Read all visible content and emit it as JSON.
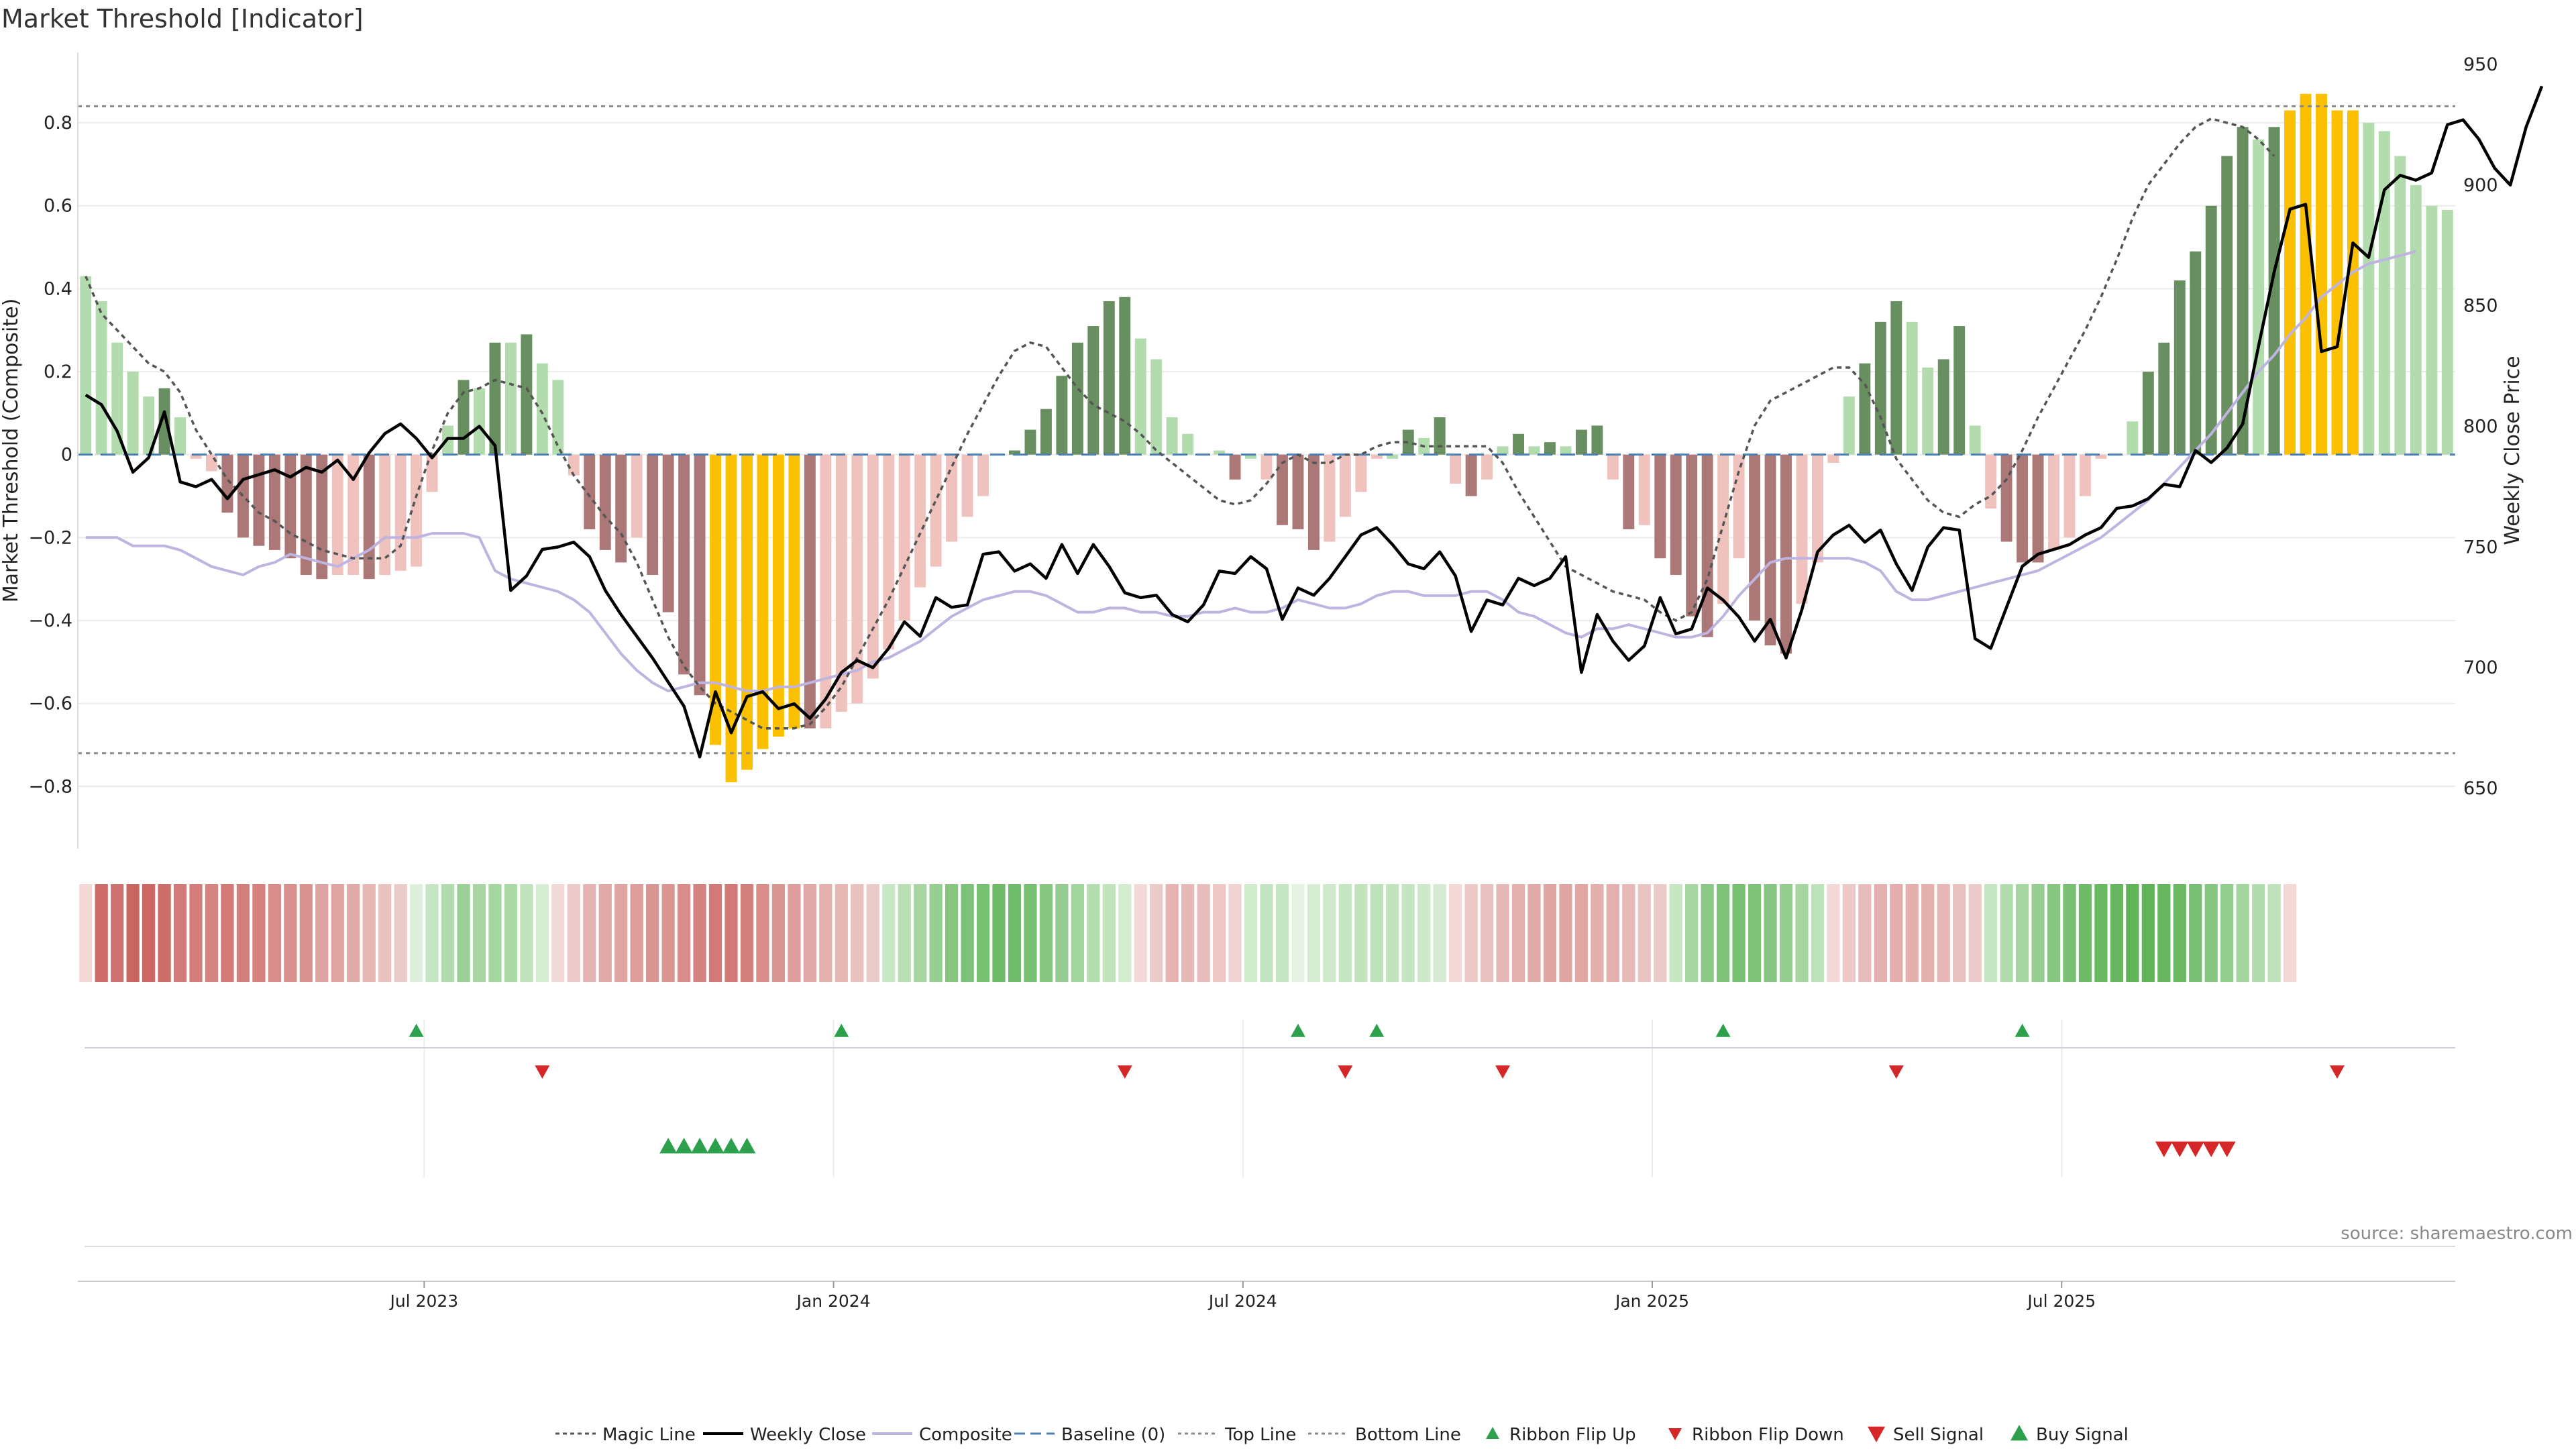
{
  "chart_data": {
    "title": "Market Threshold [Indicator]",
    "type": "bar",
    "left_axis": {
      "label": "Market Threshold (Composite)",
      "ticks": [
        0.8,
        0.6,
        0.4,
        0.2,
        0,
        -0.2,
        -0.4,
        -0.6,
        -0.8
      ],
      "tick_labels": [
        "0.8",
        "0.6",
        "0.4",
        "0.2",
        "0",
        "−0.2",
        "−0.4",
        "−0.6",
        "−0.8"
      ],
      "range": [
        -0.95,
        0.97
      ]
    },
    "right_axis": {
      "label": "Weekly Close Price",
      "ticks": [
        950,
        900,
        850,
        800,
        750,
        700,
        650
      ],
      "range": [
        625,
        955
      ]
    },
    "x_axis": {
      "tick_labels": [
        "Jul 2023",
        "Jan 2024",
        "Jul 2024",
        "Jan 2025",
        "Jul 2025"
      ],
      "tick_weeks": [
        22,
        48,
        74,
        100,
        126
      ]
    },
    "top_line": 0.84,
    "bottom_line": -0.72,
    "composite_bars": [
      0.43,
      0.37,
      0.27,
      0.2,
      0.14,
      0.16,
      0.09,
      -0.01,
      -0.04,
      -0.14,
      -0.2,
      -0.22,
      -0.23,
      -0.25,
      -0.29,
      -0.3,
      -0.29,
      -0.29,
      -0.3,
      -0.29,
      -0.28,
      -0.27,
      -0.09,
      0.07,
      0.18,
      0.16,
      0.27,
      0.27,
      0.29,
      0.22,
      0.18,
      -0.05,
      -0.18,
      -0.23,
      -0.26,
      -0.2,
      -0.29,
      -0.38,
      -0.53,
      -0.58,
      -0.7,
      -0.79,
      -0.76,
      -0.71,
      -0.68,
      -0.66,
      -0.66,
      -0.66,
      -0.62,
      -0.6,
      -0.54,
      -0.47,
      -0.4,
      -0.32,
      -0.27,
      -0.21,
      -0.15,
      -0.1,
      0.0,
      0.01,
      0.06,
      0.11,
      0.19,
      0.27,
      0.31,
      0.37,
      0.38,
      0.28,
      0.23,
      0.09,
      0.05,
      0.0,
      0.01,
      -0.06,
      -0.01,
      -0.06,
      -0.17,
      -0.18,
      -0.23,
      -0.21,
      -0.15,
      -0.09,
      -0.01,
      -0.01,
      0.06,
      0.04,
      0.09,
      -0.07,
      -0.1,
      -0.06,
      0.02,
      0.05,
      0.02,
      0.03,
      0.02,
      0.06,
      0.07,
      -0.06,
      -0.18,
      -0.17,
      -0.25,
      -0.29,
      -0.39,
      -0.44,
      -0.36,
      -0.25,
      -0.4,
      -0.46,
      -0.48,
      -0.36,
      -0.26,
      -0.02,
      0.14,
      0.22,
      0.32,
      0.37,
      0.32,
      0.21,
      0.23,
      0.31,
      0.07,
      -0.13,
      -0.21,
      -0.26,
      -0.26,
      -0.23,
      -0.2,
      -0.1,
      -0.01,
      0.0,
      0.08,
      0.2,
      0.27,
      0.42,
      0.49,
      0.6,
      0.72,
      0.79,
      0.76,
      0.79,
      0.83,
      0.87,
      0.87,
      0.83,
      0.83,
      0.8,
      0.78,
      0.72,
      0.65,
      0.6,
      0.59
    ],
    "bar_colors": [
      "#b2dcae",
      "#b2dcae",
      "#b2dcae",
      "#b2dcae",
      "#b2dcae",
      "#688f60",
      "#b2dcae",
      "#efc2bd",
      "#efc2bd",
      "#ac7777",
      "#ac7777",
      "#ac7777",
      "#ac7777",
      "#ac7777",
      "#ac7777",
      "#ac7777",
      "#efc2bd",
      "#efc2bd",
      "#ac7777",
      "#efc2bd",
      "#efc2bd",
      "#efc2bd",
      "#efc2bd",
      "#b2dcae",
      "#688f60",
      "#b2dcae",
      "#688f60",
      "#b2dcae",
      "#688f60",
      "#b2dcae",
      "#b2dcae",
      "#efc2bd",
      "#ac7777",
      "#ac7777",
      "#ac7777",
      "#efc2bd",
      "#ac7777",
      "#ac7777",
      "#ac7777",
      "#ac7777",
      "#fbc002",
      "#fbc002",
      "#fbc002",
      "#fbc002",
      "#fbc002",
      "#fbc002",
      "#ac7777",
      "#efc2bd",
      "#efc2bd",
      "#efc2bd",
      "#efc2bd",
      "#efc2bd",
      "#efc2bd",
      "#efc2bd",
      "#efc2bd",
      "#efc2bd",
      "#efc2bd",
      "#efc2bd",
      "#b2dcae",
      "#688f60",
      "#688f60",
      "#688f60",
      "#688f60",
      "#688f60",
      "#688f60",
      "#688f60",
      "#688f60",
      "#b2dcae",
      "#b2dcae",
      "#b2dcae",
      "#b2dcae",
      "#b2dcae",
      "#b2dcae",
      "#ac7777",
      "#b2dcae",
      "#efc2bd",
      "#ac7777",
      "#ac7777",
      "#ac7777",
      "#efc2bd",
      "#efc2bd",
      "#efc2bd",
      "#efc2bd",
      "#b2dcae",
      "#688f60",
      "#b2dcae",
      "#688f60",
      "#efc2bd",
      "#ac7777",
      "#efc2bd",
      "#b2dcae",
      "#688f60",
      "#b2dcae",
      "#688f60",
      "#b2dcae",
      "#688f60",
      "#688f60",
      "#efc2bd",
      "#ac7777",
      "#efc2bd",
      "#ac7777",
      "#ac7777",
      "#ac7777",
      "#ac7777",
      "#efc2bd",
      "#efc2bd",
      "#ac7777",
      "#ac7777",
      "#ac7777",
      "#efc2bd",
      "#efc2bd",
      "#efc2bd",
      "#b2dcae",
      "#688f60",
      "#688f60",
      "#688f60",
      "#b2dcae",
      "#b2dcae",
      "#688f60",
      "#688f60",
      "#b2dcae",
      "#efc2bd",
      "#ac7777",
      "#ac7777",
      "#ac7777",
      "#efc2bd",
      "#efc2bd",
      "#efc2bd",
      "#efc2bd",
      "#efc2bd",
      "#b2dcae",
      "#688f60",
      "#688f60",
      "#688f60",
      "#688f60",
      "#688f60",
      "#688f60",
      "#688f60",
      "#b2dcae",
      "#688f60",
      "#fbc002",
      "#fbc002",
      "#fbc002",
      "#fbc002",
      "#fbc002",
      "#b2dcae",
      "#b2dcae",
      "#b2dcae",
      "#b2dcae",
      "#b2dcae",
      "#b2dcae",
      "#b2dcae"
    ],
    "weekly_close": [
      813,
      809,
      798,
      781,
      787,
      806,
      777,
      775,
      778,
      770,
      778,
      780,
      782,
      779,
      783,
      781,
      786,
      778,
      789,
      797,
      801,
      795,
      787,
      795,
      795,
      800,
      792,
      732,
      738,
      749,
      750,
      752,
      746,
      732,
      722,
      713,
      704,
      694,
      684,
      663,
      690,
      673,
      688,
      690,
      683,
      685,
      679,
      687,
      698,
      703,
      700,
      708,
      719,
      713,
      729,
      725,
      726,
      747,
      748,
      740,
      743,
      737,
      751,
      739,
      751,
      742,
      731,
      729,
      730,
      722,
      719,
      726,
      740,
      739,
      746,
      741,
      720,
      733,
      730,
      737,
      746,
      755,
      758,
      751,
      743,
      741,
      748,
      738,
      715,
      728,
      726,
      737,
      734,
      737,
      746,
      698,
      722,
      711,
      703,
      709,
      729,
      714,
      716,
      733,
      728,
      721,
      711,
      720,
      704,
      724,
      748,
      755,
      759,
      752,
      757,
      743,
      732,
      750,
      758,
      757,
      712,
      708,
      725,
      742,
      747,
      749,
      751,
      755,
      758,
      766,
      767,
      770,
      776,
      775,
      790,
      785,
      791,
      801,
      833,
      864,
      890,
      892,
      831,
      833,
      876,
      870,
      898,
      904,
      902,
      905,
      925,
      927,
      919,
      907,
      900,
      924,
      941
    ],
    "magic_line": [
      0.43,
      0.34,
      0.3,
      0.26,
      0.22,
      0.2,
      0.15,
      0.06,
      0.0,
      -0.06,
      -0.1,
      -0.14,
      -0.16,
      -0.19,
      -0.21,
      -0.23,
      -0.24,
      -0.25,
      -0.25,
      -0.25,
      -0.22,
      -0.1,
      0.01,
      0.1,
      0.15,
      0.16,
      0.18,
      0.17,
      0.16,
      0.1,
      0.02,
      -0.05,
      -0.1,
      -0.15,
      -0.19,
      -0.26,
      -0.35,
      -0.44,
      -0.51,
      -0.56,
      -0.6,
      -0.62,
      -0.64,
      -0.66,
      -0.66,
      -0.66,
      -0.65,
      -0.61,
      -0.56,
      -0.49,
      -0.42,
      -0.35,
      -0.27,
      -0.19,
      -0.11,
      -0.03,
      0.05,
      0.12,
      0.19,
      0.25,
      0.27,
      0.26,
      0.21,
      0.16,
      0.12,
      0.1,
      0.08,
      0.05,
      0.01,
      -0.02,
      -0.05,
      -0.08,
      -0.11,
      -0.12,
      -0.11,
      -0.07,
      -0.02,
      0.0,
      -0.02,
      -0.02,
      0.0,
      0.0,
      0.02,
      0.03,
      0.03,
      0.02,
      0.02,
      0.02,
      0.02,
      0.02,
      -0.02,
      -0.09,
      -0.15,
      -0.21,
      -0.27,
      -0.29,
      -0.31,
      -0.33,
      -0.34,
      -0.35,
      -0.38,
      -0.4,
      -0.38,
      -0.3,
      -0.17,
      -0.04,
      0.07,
      0.13,
      0.15,
      0.17,
      0.19,
      0.21,
      0.21,
      0.17,
      0.09,
      -0.01,
      -0.06,
      -0.11,
      -0.14,
      -0.15,
      -0.12,
      -0.1,
      -0.06,
      0.01,
      0.09,
      0.16,
      0.23,
      0.3,
      0.38,
      0.47,
      0.57,
      0.65,
      0.7,
      0.75,
      0.79,
      0.81,
      0.8,
      0.79,
      0.76,
      0.72
    ],
    "magic_line_start_week": 0,
    "composite_line": [
      -0.2,
      -0.2,
      -0.2,
      -0.22,
      -0.22,
      -0.22,
      -0.23,
      -0.25,
      -0.27,
      -0.28,
      -0.29,
      -0.27,
      -0.26,
      -0.24,
      -0.25,
      -0.26,
      -0.27,
      -0.25,
      -0.23,
      -0.2,
      -0.2,
      -0.2,
      -0.19,
      -0.19,
      -0.19,
      -0.2,
      -0.28,
      -0.3,
      -0.31,
      -0.32,
      -0.33,
      -0.35,
      -0.38,
      -0.43,
      -0.48,
      -0.52,
      -0.55,
      -0.57,
      -0.56,
      -0.55,
      -0.55,
      -0.56,
      -0.57,
      -0.57,
      -0.56,
      -0.56,
      -0.55,
      -0.54,
      -0.53,
      -0.52,
      -0.5,
      -0.49,
      -0.47,
      -0.45,
      -0.42,
      -0.39,
      -0.37,
      -0.35,
      -0.34,
      -0.33,
      -0.33,
      -0.34,
      -0.36,
      -0.38,
      -0.38,
      -0.37,
      -0.37,
      -0.38,
      -0.38,
      -0.39,
      -0.39,
      -0.38,
      -0.38,
      -0.37,
      -0.38,
      -0.38,
      -0.37,
      -0.35,
      -0.36,
      -0.37,
      -0.37,
      -0.36,
      -0.34,
      -0.33,
      -0.33,
      -0.34,
      -0.34,
      -0.34,
      -0.33,
      -0.33,
      -0.35,
      -0.38,
      -0.39,
      -0.41,
      -0.43,
      -0.44,
      -0.42,
      -0.42,
      -0.41,
      -0.42,
      -0.43,
      -0.44,
      -0.44,
      -0.43,
      -0.39,
      -0.34,
      -0.3,
      -0.26,
      -0.25,
      -0.25,
      -0.25,
      -0.25,
      -0.25,
      -0.26,
      -0.28,
      -0.33,
      -0.35,
      -0.35,
      -0.34,
      -0.33,
      -0.32,
      -0.31,
      -0.3,
      -0.29,
      -0.28,
      -0.26,
      -0.24,
      -0.22,
      -0.2,
      -0.17,
      -0.14,
      -0.11,
      -0.07,
      -0.03,
      0.01,
      0.05,
      0.1,
      0.15,
      0.2,
      0.24,
      0.29,
      0.33,
      0.38,
      0.41,
      0.44,
      0.46,
      0.47,
      0.48,
      0.49
    ],
    "composite_line_start_week": 0,
    "ribbon_colors": [
      "#f2d8d6",
      "#cd6c6a",
      "#cf7370",
      "#c86662",
      "#cb6864",
      "#ce6e6b",
      "#d27a77",
      "#d37d7a",
      "#d48582",
      "#d37a77",
      "#d3807d",
      "#d6817e",
      "#d88d8a",
      "#d98f8c",
      "#da9290",
      "#dea4a1",
      "#dfa6a3",
      "#e1aaa8",
      "#e6b7b5",
      "#e9c1bf",
      "#eccac9",
      "#ddf0db",
      "#c6e6c3",
      "#b1dcae",
      "#9bd197",
      "#a7d6a3",
      "#a5d6a1",
      "#acd8a8",
      "#c1e4bd",
      "#d7eed5",
      "#f2d8d6",
      "#eccac9",
      "#e5b4b2",
      "#e1aaa8",
      "#dfa6a3",
      "#dd9e9b",
      "#d99592",
      "#da9693",
      "#d88d8a",
      "#d58380",
      "#d27a77",
      "#d27a77",
      "#d3807d",
      "#d88d8a",
      "#d99592",
      "#de9f9c",
      "#e1aaa8",
      "#e4b0ae",
      "#e6b7b5",
      "#e9c1bf",
      "#eccac9",
      "#c9e7c6",
      "#b8e0b4",
      "#a7d6a3",
      "#97cf93",
      "#86c681",
      "#7dc278",
      "#77bf71",
      "#6fbb68",
      "#71bc6b",
      "#78bf73",
      "#88c683",
      "#94cd8f",
      "#a2d49e",
      "#b3dcaf",
      "#c1e4bd",
      "#d1ecce",
      "#f2d8d6",
      "#eccac9",
      "#e5b4b2",
      "#e6b8b6",
      "#e8bdbb",
      "#ecc7c5",
      "#f0d3d1",
      "#d1ebcd",
      "#c4e5c1",
      "#c7e6c4",
      "#e3f2e1",
      "#d7eed5",
      "#cfe9cc",
      "#c6e6c3",
      "#c1e4bd",
      "#bde2b9",
      "#c1e4bd",
      "#c5e5c2",
      "#cbe8c8",
      "#d5ecd2",
      "#f2d8d6",
      "#ebc7c5",
      "#e9c1bf",
      "#e6b8b6",
      "#e4b0ae",
      "#e1aaa8",
      "#dfa6a3",
      "#dfa6a3",
      "#e0a7a4",
      "#e3aeab",
      "#e4b0ae",
      "#e7bab8",
      "#eac4c2",
      "#eccac9",
      "#c7e6c4",
      "#a6d6a2",
      "#8bc887",
      "#7dc278",
      "#77bf71",
      "#7dc278",
      "#87c682",
      "#94cd8f",
      "#a5d6a1",
      "#bde2b9",
      "#f2d8d6",
      "#ecc7c5",
      "#e8bdbb",
      "#e4b0ae",
      "#e3aeab",
      "#e3aeab",
      "#e4b0ae",
      "#e6b7b5",
      "#e9c1bf",
      "#eccac9",
      "#c6e6c3",
      "#b1dcae",
      "#a5d6a1",
      "#96ce92",
      "#86c681",
      "#78bf73",
      "#6fbb68",
      "#69b862",
      "#66b65f",
      "#62b45a",
      "#62b45a",
      "#66b65f",
      "#6db966",
      "#78bf73",
      "#86c681",
      "#94cd8f",
      "#a2d49e",
      "#b1dcae",
      "#bde2b9",
      "#f2d8d6"
    ],
    "ribbon_flip_up_weeks": [
      21,
      48,
      77,
      82,
      104,
      123
    ],
    "ribbon_flip_down_weeks": [
      29,
      66,
      80,
      90,
      115,
      143
    ],
    "buy_signal_weeks": [
      37,
      38,
      39,
      40,
      41,
      42
    ],
    "sell_signal_weeks": [
      132,
      133,
      134,
      135,
      136
    ],
    "annotation": "source: sharemaestro.com",
    "legend": [
      "Magic Line",
      "Weekly Close",
      "Composite",
      "Baseline (0)",
      "Top Line",
      "Bottom Line",
      "Ribbon Flip Up",
      "Ribbon Flip Down",
      "Sell Signal",
      "Buy Signal"
    ],
    "legend_position": "bottom"
  }
}
